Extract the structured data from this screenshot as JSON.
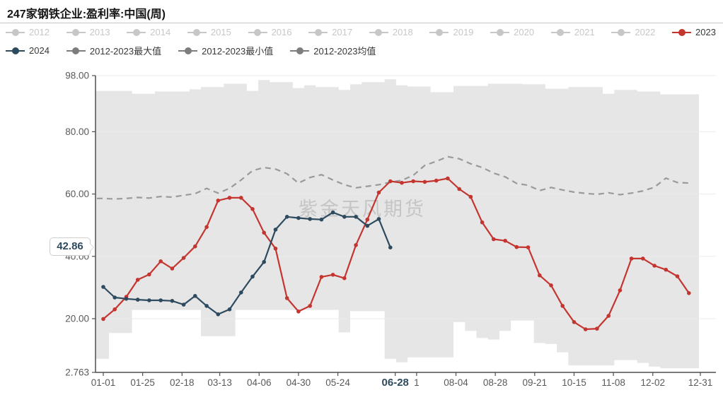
{
  "title": "247家钢铁企业:盈利率:中国(周)",
  "watermark": "紫金天风期货",
  "annotation": {
    "label": "42.86",
    "value": 42.86
  },
  "colors": {
    "red": "#c43530",
    "navy": "#2d4a5e",
    "muted": "#c7c7c7",
    "gray": "#7d7d7d",
    "dark": "#383838",
    "mean_line": "#9a9a9a",
    "band": "#e6e6e6",
    "grid": "#ebebeb",
    "axis": "#4f4f4f",
    "tick_text": "#595959",
    "highlight_text": "#2d4a5e"
  },
  "legend": {
    "row1": [
      {
        "label": "2012",
        "marker": "muted",
        "text": "muted"
      },
      {
        "label": "2013",
        "marker": "muted",
        "text": "muted"
      },
      {
        "label": "2014",
        "marker": "muted",
        "text": "muted"
      },
      {
        "label": "2015",
        "marker": "muted",
        "text": "muted"
      },
      {
        "label": "2016",
        "marker": "muted",
        "text": "muted"
      },
      {
        "label": "2017",
        "marker": "muted",
        "text": "muted"
      },
      {
        "label": "2018",
        "marker": "muted",
        "text": "muted"
      },
      {
        "label": "2019",
        "marker": "muted",
        "text": "muted"
      },
      {
        "label": "2020",
        "marker": "muted",
        "text": "muted"
      },
      {
        "label": "2021",
        "marker": "muted",
        "text": "muted"
      },
      {
        "label": "2022",
        "marker": "muted",
        "text": "muted"
      },
      {
        "label": "2023",
        "marker": "red",
        "text": "dark"
      }
    ],
    "row2": [
      {
        "label": "2024",
        "marker": "navy",
        "text": "dark"
      },
      {
        "label": "2012-2023最大值",
        "marker": "gray",
        "text": "dark"
      },
      {
        "label": "2012-2023最小值",
        "marker": "gray",
        "text": "dark"
      },
      {
        "label": "2012-2023均值",
        "marker": "gray",
        "text": "dark"
      }
    ]
  },
  "chart_data": {
    "type": "line",
    "title": "247家钢铁企业:盈利率:中国(周)",
    "ylabel": "",
    "xlabel": "",
    "ylim": [
      2.763,
      98
    ],
    "days_total": 364,
    "week_step_days": 7,
    "grid": true,
    "y_ticks": [
      {
        "v": 98,
        "label": "98.00"
      },
      {
        "v": 80,
        "label": "80.00"
      },
      {
        "v": 60,
        "label": "60.00"
      },
      {
        "v": 40,
        "label": "40.00"
      },
      {
        "v": 20,
        "label": "20.00"
      },
      {
        "v": 2.763,
        "label": "2.763"
      }
    ],
    "x_ticks": [
      {
        "day": 0,
        "label": "01-01"
      },
      {
        "day": 24,
        "label": "01-25"
      },
      {
        "day": 48,
        "label": "02-18"
      },
      {
        "day": 71,
        "label": "03-13"
      },
      {
        "day": 95,
        "label": "04-06"
      },
      {
        "day": 119,
        "label": "04-30"
      },
      {
        "day": 143,
        "label": "05-24"
      },
      {
        "day": 178,
        "label": "06-28",
        "highlight": true
      },
      {
        "day": 191,
        "label": "1"
      },
      {
        "day": 215,
        "label": "08-04"
      },
      {
        "day": 239,
        "label": "08-28"
      },
      {
        "day": 263,
        "label": "09-21"
      },
      {
        "day": 287,
        "label": "10-15"
      },
      {
        "day": 311,
        "label": "11-08"
      },
      {
        "day": 335,
        "label": "12-02"
      },
      {
        "day": 364,
        "label": "12-31"
      }
    ],
    "series": [
      {
        "name": "2012-2023最大值",
        "role": "band_max",
        "values": [
          93.1,
          93.1,
          93.1,
          92.2,
          92.2,
          92.9,
          92.9,
          92.9,
          93.6,
          94.3,
          94.3,
          95.4,
          95.4,
          93.1,
          96.6,
          95.9,
          95.9,
          94,
          94.9,
          94.3,
          94.3,
          93.4,
          95.2,
          95.9,
          95.9,
          96.8,
          94.9,
          94.5,
          94.5,
          92.7,
          92.7,
          94.7,
          94.7,
          94.7,
          95.4,
          95.4,
          95.4,
          95.2,
          95.2,
          93.8,
          93.8,
          94.3,
          94.3,
          94.3,
          92.2,
          93.4,
          93.4,
          92.9,
          92.9,
          92,
          92,
          92
        ]
      },
      {
        "name": "2012-2023最小值",
        "role": "band_min",
        "values": [
          7.1,
          15.4,
          15.4,
          22.8,
          22.8,
          22.8,
          22.8,
          22.8,
          22.8,
          14.4,
          14.4,
          14.4,
          22.8,
          22.8,
          22.8,
          22.8,
          22.8,
          22.8,
          22.8,
          22.8,
          22.8,
          15.6,
          22.4,
          22.4,
          22.4,
          7.1,
          6,
          7.6,
          7.6,
          7.6,
          7.6,
          18.9,
          16.1,
          13.8,
          13.3,
          16.1,
          19.4,
          19.4,
          12.2,
          11.9,
          9.2,
          5,
          5,
          5,
          5,
          6.7,
          6.7,
          5.8,
          4.6,
          4.1,
          4.1,
          4.1
        ]
      },
      {
        "name": "2012-2023均值",
        "role": "mean",
        "style": "dashed",
        "values": [
          58.6,
          58.4,
          58.6,
          58.9,
          58.7,
          59.2,
          59,
          59.6,
          60.1,
          61.8,
          60.3,
          61.8,
          64.5,
          67.5,
          68.5,
          68,
          66.5,
          63.5,
          65.3,
          66.2,
          64.5,
          63,
          62,
          62.5,
          63,
          63.8,
          64.4,
          66,
          69.2,
          70.5,
          72,
          71.3,
          69.7,
          68.5,
          66.7,
          65.5,
          63.4,
          62.8,
          61.1,
          62.1,
          61.3,
          60.6,
          60.2,
          59.9,
          60.4,
          59.8,
          60.3,
          61,
          62.2,
          65.1,
          63.7,
          63.5
        ]
      },
      {
        "name": "2023",
        "role": "line",
        "color": "red",
        "values": [
          19.9,
          23,
          27,
          32.5,
          34.2,
          38.4,
          36.1,
          39.5,
          43.2,
          49.4,
          57.9,
          58.8,
          58.8,
          55.2,
          47.6,
          42.5,
          26.6,
          22.3,
          24.1,
          33.4,
          34.1,
          33,
          43.6,
          51.8,
          60.5,
          64.1,
          63.6,
          64.1,
          63.9,
          64.3,
          65,
          61.6,
          59.1,
          50.9,
          45.5,
          45,
          43,
          42.9,
          33.9,
          30.7,
          24.1,
          18.9,
          16.6,
          16.8,
          20.9,
          29.1,
          39.3,
          39.3,
          37,
          35.7,
          33.6,
          28.2
        ]
      },
      {
        "name": "2024",
        "role": "line",
        "color": "navy",
        "end_label": "42.86",
        "values": [
          30.2,
          26.8,
          26.4,
          26.1,
          25.9,
          25.9,
          25.7,
          24.5,
          27.3,
          24.1,
          21.4,
          23,
          28.4,
          33.5,
          38.2,
          48.6,
          52.7,
          52.3,
          52,
          51.8,
          54.1,
          52.7,
          52.7,
          49.8,
          52,
          42.86
        ]
      }
    ]
  }
}
